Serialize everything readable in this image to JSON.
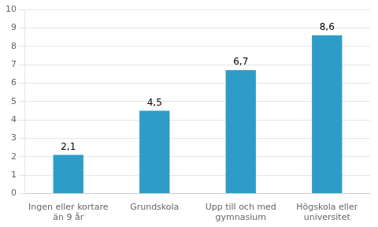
{
  "chart_data": {
    "type": "bar",
    "categories": [
      "Ingen eller kortare\nän 9 år",
      "Grundskola",
      "Upp till och med\ngymnasium",
      "Högskola eller\nuniversitet"
    ],
    "values": [
      2.1,
      4.5,
      6.7,
      8.6
    ],
    "value_labels": [
      "2,1",
      "4,5",
      "6,7",
      "8,6"
    ],
    "data_labels": true,
    "color": "#2E9CC8",
    "ylim": [
      0,
      10
    ],
    "yticks": [
      0,
      1,
      2,
      3,
      4,
      5,
      6,
      7,
      8,
      9,
      10
    ],
    "grid": true
  }
}
